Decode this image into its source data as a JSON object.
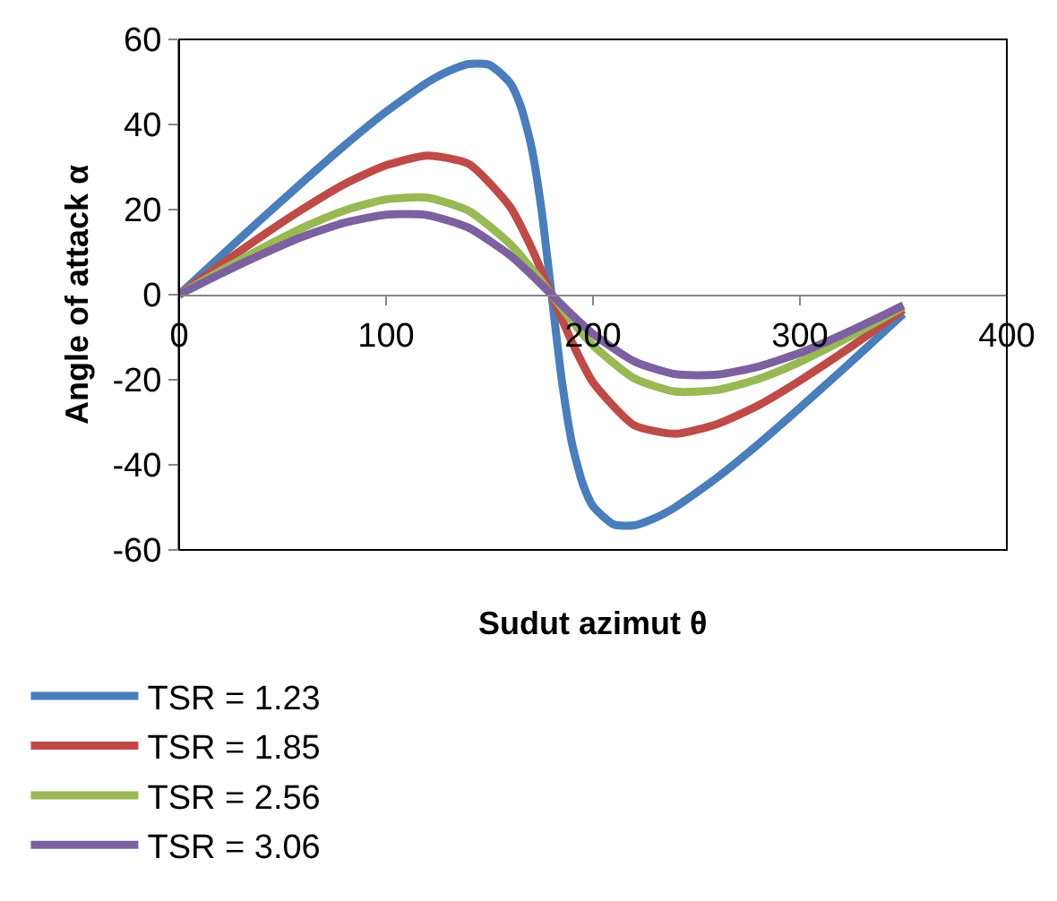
{
  "chart_data": {
    "type": "line",
    "xlabel": "Sudut azimut θ",
    "ylabel": "Angle of attack α",
    "xlim": [
      0,
      400
    ],
    "xticks": [
      0,
      100,
      200,
      300,
      400
    ],
    "ylim": [
      -60,
      60
    ],
    "yticks": [
      -60,
      -40,
      -20,
      0,
      20,
      40,
      60
    ],
    "grid": false,
    "legend": "bottom left",
    "marker": "none",
    "line_style": "solid",
    "series": [
      {
        "name": "TSR = 1.23",
        "color": "#4a7ebb",
        "x": [
          0,
          20,
          40,
          60,
          80,
          100,
          120,
          130,
          140,
          150,
          160,
          165,
          170,
          175,
          180,
          185,
          190,
          195,
          200,
          210,
          220,
          230,
          240,
          260,
          280,
          300,
          320,
          340,
          350
        ],
        "values": [
          0,
          9.0,
          17.9,
          26.6,
          35.1,
          43.0,
          49.9,
          52.5,
          54.2,
          54.0,
          49.7,
          44.4,
          35.3,
          20.4,
          0,
          -20.4,
          -35.3,
          -44.4,
          -49.7,
          -54.0,
          -54.2,
          -52.5,
          -49.9,
          -43.0,
          -35.1,
          -26.6,
          -17.9,
          -9.0,
          -4.5
        ]
      },
      {
        "name": "TSR = 1.85",
        "color": "#be4b48",
        "x": [
          0,
          20,
          40,
          60,
          80,
          100,
          120,
          140,
          160,
          170,
          180,
          190,
          200,
          220,
          240,
          260,
          280,
          300,
          320,
          340,
          350
        ],
        "values": [
          0,
          7.0,
          13.8,
          20.2,
          26.0,
          30.4,
          32.7,
          30.7,
          20.6,
          11.3,
          0,
          -11.3,
          -20.6,
          -30.7,
          -32.7,
          -30.4,
          -26.0,
          -20.2,
          -13.8,
          -7.0,
          -3.5
        ]
      },
      {
        "name": "TSR = 2.56",
        "color": "#98b954",
        "x": [
          0,
          20,
          40,
          60,
          80,
          100,
          120,
          140,
          160,
          170,
          180,
          190,
          200,
          220,
          240,
          260,
          280,
          300,
          320,
          340,
          350
        ],
        "values": [
          0,
          5.6,
          10.9,
          15.8,
          19.8,
          22.4,
          22.8,
          19.7,
          11.9,
          6.3,
          0,
          -6.3,
          -11.9,
          -19.7,
          -22.8,
          -22.4,
          -19.8,
          -15.8,
          -10.9,
          -5.6,
          -2.8
        ]
      },
      {
        "name": "TSR = 3.06",
        "color": "#7d60a0",
        "x": [
          0,
          20,
          40,
          60,
          80,
          100,
          120,
          140,
          160,
          170,
          180,
          190,
          200,
          220,
          240,
          260,
          280,
          300,
          320,
          340,
          350
        ],
        "values": [
          0,
          4.9,
          9.5,
          13.7,
          16.9,
          18.8,
          18.7,
          15.7,
          9.2,
          4.8,
          0,
          -4.8,
          -9.2,
          -15.7,
          -18.7,
          -18.8,
          -16.9,
          -13.7,
          -9.5,
          -4.9,
          -2.5
        ]
      }
    ]
  }
}
